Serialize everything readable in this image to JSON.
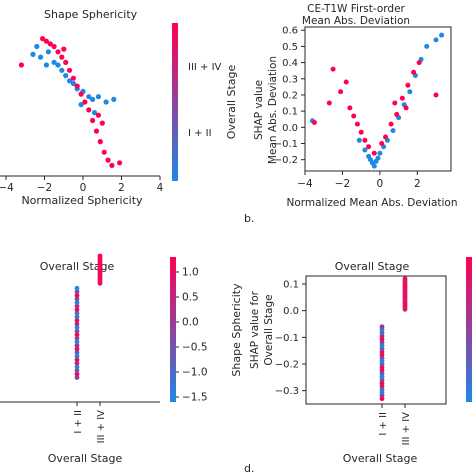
{
  "colors": {
    "blue": "#1e88e5",
    "red": "#ff0052",
    "axis": "#262626"
  },
  "panel_labels": {
    "b": "b.",
    "d": "d."
  },
  "chart_data": [
    {
      "id": "a",
      "type": "scatter",
      "title": "Shape Sphericity",
      "xlabel": "Normalized Sphericity",
      "ylabel": "",
      "xlim": [
        -4,
        4
      ],
      "ylim": [
        -3.3,
        2.3
      ],
      "xticks": [
        -4,
        -2,
        0,
        2,
        4
      ],
      "yticks": [],
      "colorbar": {
        "label": "Overall Stage",
        "top_label": "III + IV",
        "bottom_label": "I + II"
      },
      "series": [
        {
          "color": "blue",
          "points": [
            [
              -2.4,
              1.6
            ],
            [
              -2.2,
              1.2
            ],
            [
              -1.8,
              1.4
            ],
            [
              -1.5,
              1.0
            ],
            [
              -1.3,
              0.9
            ],
            [
              -1.1,
              0.7
            ],
            [
              -0.9,
              0.5
            ],
            [
              -0.7,
              0.3
            ],
            [
              -0.5,
              0.2
            ],
            [
              -0.3,
              0.0
            ],
            [
              0.0,
              -0.1
            ],
            [
              0.3,
              -0.3
            ],
            [
              0.5,
              -0.4
            ],
            [
              0.8,
              -0.3
            ],
            [
              1.2,
              -0.5
            ],
            [
              1.6,
              -0.4
            ],
            [
              -1.9,
              0.9
            ],
            [
              -2.6,
              1.3
            ],
            [
              -0.1,
              -0.6
            ],
            [
              0.6,
              -0.9
            ]
          ]
        },
        {
          "color": "red",
          "points": [
            [
              -3.2,
              0.9
            ],
            [
              -2.1,
              1.9
            ],
            [
              -1.9,
              1.8
            ],
            [
              -1.7,
              1.7
            ],
            [
              -1.5,
              1.6
            ],
            [
              -1.3,
              1.4
            ],
            [
              -1.1,
              1.2
            ],
            [
              -0.9,
              1.0
            ],
            [
              -0.7,
              0.7
            ],
            [
              -0.5,
              0.4
            ],
            [
              -0.3,
              0.1
            ],
            [
              -0.1,
              -0.2
            ],
            [
              0.1,
              -0.5
            ],
            [
              0.3,
              -0.8
            ],
            [
              0.5,
              -1.2
            ],
            [
              0.7,
              -1.6
            ],
            [
              0.9,
              -2.0
            ],
            [
              1.1,
              -2.4
            ],
            [
              1.3,
              -2.7
            ],
            [
              1.5,
              -2.9
            ],
            [
              1.9,
              -2.8
            ],
            [
              0.8,
              -1.0
            ],
            [
              1.0,
              -1.3
            ],
            [
              -1.0,
              1.5
            ]
          ]
        }
      ]
    },
    {
      "id": "b",
      "type": "scatter",
      "title": "CE-T1W First-order\nMean Abs. Deviation",
      "xlabel": "Normalized Mean Abs. Deviation",
      "ylabel": "SHAP value\nMean Abs. Deviation",
      "xlim": [
        -4,
        3.8
      ],
      "ylim": [
        -0.27,
        0.62
      ],
      "xticks": [
        -4,
        -2,
        0,
        2
      ],
      "yticks": [
        -0.2,
        -0.1,
        0.0,
        0.1,
        0.2,
        0.3,
        0.4,
        0.5,
        0.6
      ],
      "series": [
        {
          "color": "blue",
          "points": [
            [
              -0.6,
              -0.18
            ],
            [
              -0.5,
              -0.2
            ],
            [
              -0.4,
              -0.22
            ],
            [
              -0.3,
              -0.24
            ],
            [
              -0.2,
              -0.21
            ],
            [
              -0.1,
              -0.19
            ],
            [
              0.0,
              -0.16
            ],
            [
              0.2,
              -0.12
            ],
            [
              0.4,
              -0.08
            ],
            [
              0.7,
              -0.02
            ],
            [
              1.0,
              0.06
            ],
            [
              1.3,
              0.14
            ],
            [
              1.6,
              0.22
            ],
            [
              1.9,
              0.32
            ],
            [
              2.2,
              0.42
            ],
            [
              2.5,
              0.5
            ],
            [
              3.0,
              0.54
            ],
            [
              3.3,
              0.57
            ],
            [
              -0.8,
              -0.14
            ],
            [
              -1.1,
              -0.08
            ],
            [
              -3.6,
              0.04
            ]
          ]
        },
        {
          "color": "red",
          "points": [
            [
              -3.5,
              0.03
            ],
            [
              -2.5,
              0.36
            ],
            [
              -2.1,
              0.22
            ],
            [
              -1.8,
              0.28
            ],
            [
              -1.6,
              0.12
            ],
            [
              -1.4,
              0.07
            ],
            [
              -1.2,
              0.02
            ],
            [
              -1.0,
              -0.03
            ],
            [
              -0.8,
              -0.08
            ],
            [
              -0.6,
              -0.12
            ],
            [
              -0.3,
              -0.16
            ],
            [
              0.1,
              -0.1
            ],
            [
              0.3,
              -0.06
            ],
            [
              0.6,
              0.02
            ],
            [
              0.9,
              0.08
            ],
            [
              1.2,
              0.18
            ],
            [
              1.5,
              0.26
            ],
            [
              1.8,
              0.34
            ],
            [
              2.1,
              0.4
            ],
            [
              3.0,
              0.2
            ],
            [
              -2.7,
              0.15
            ],
            [
              1.4,
              0.12
            ],
            [
              0.8,
              0.15
            ]
          ]
        }
      ]
    },
    {
      "id": "c",
      "type": "scatter",
      "title": "Overall Stage",
      "xlabel": "Overall Stage",
      "ylabel": "",
      "xcategories": [
        "I + II",
        "III + IV"
      ],
      "ylim": [
        -3.3,
        2.3
      ],
      "xticks": [
        0,
        1
      ],
      "yticks": [],
      "colorbar": {
        "label": "Shape Sphericity",
        "ticks": [
          1.0,
          0.5,
          0.0,
          -0.5,
          -1.0,
          -1.5
        ],
        "min": -1.6,
        "max": 1.3
      },
      "series": [
        {
          "name": "I + II",
          "x": 0,
          "y_range": [
            -2.6,
            1.0
          ],
          "count": 26
        },
        {
          "name": "III + IV",
          "x": 1,
          "y_range": [
            1.2,
            2.3
          ],
          "count": 16
        }
      ]
    },
    {
      "id": "d",
      "type": "scatter",
      "title": "Overall Stage",
      "xlabel": "Overall Stage",
      "ylabel": "SHAP value for\nOverall Stage",
      "xcategories": [
        "I + II",
        "III + IV"
      ],
      "ylim": [
        -0.35,
        0.13
      ],
      "xticks": [
        0,
        1
      ],
      "yticks": [
        0.1,
        0.0,
        -0.1,
        -0.2,
        -0.3
      ],
      "series": [
        {
          "name": "I + II",
          "x": 0,
          "y_range": [
            -0.33,
            -0.06
          ],
          "count": 24
        },
        {
          "name": "III + IV",
          "x": 1,
          "y_range": [
            0.005,
            0.12
          ],
          "count": 18
        }
      ]
    }
  ]
}
